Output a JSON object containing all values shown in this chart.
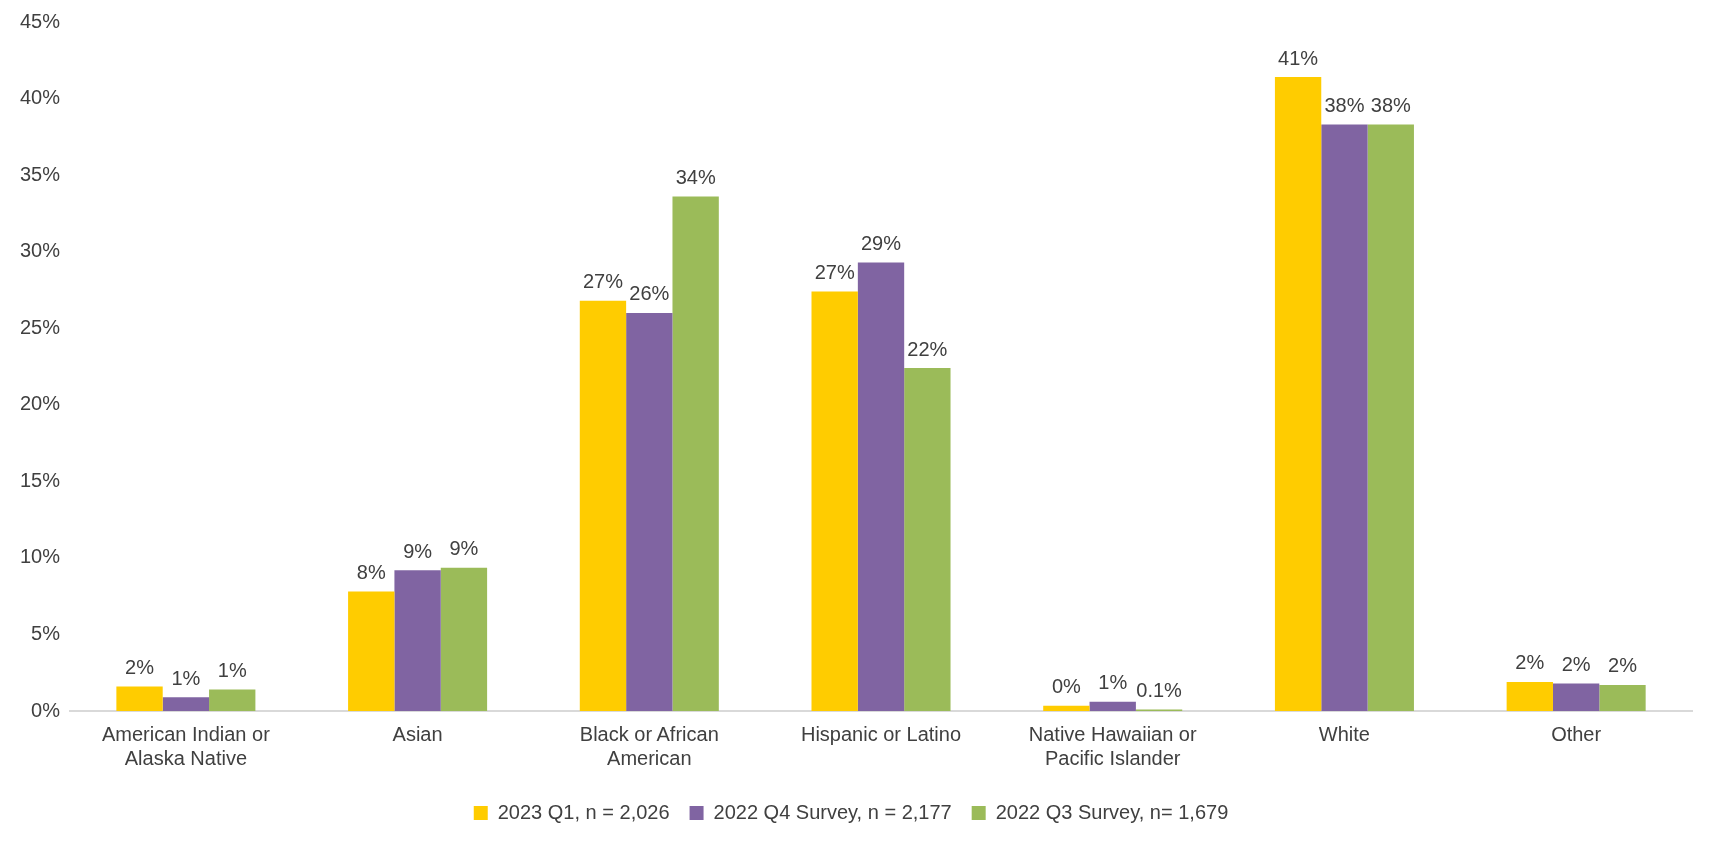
{
  "chart_data": {
    "type": "bar",
    "categories": [
      "American Indian or Alaska Native",
      "Asian",
      "Black or African American",
      "Hispanic or Latino",
      "Native Hawaiian or Pacific Islander",
      "White",
      "Other"
    ],
    "series": [
      {
        "name": "2023 Q1, n = 2,026",
        "color": "#ffcc00",
        "values": [
          1.6,
          7.8,
          26.8,
          27.4,
          0.35,
          41.4,
          1.9
        ],
        "value_labels": [
          "2%",
          "8%",
          "27%",
          "27%",
          "0%",
          "41%",
          "2%"
        ]
      },
      {
        "name": "2022 Q4 Survey, n = 2,177",
        "color": "#8064a2",
        "values": [
          0.9,
          9.2,
          26.0,
          29.3,
          0.6,
          38.3,
          1.8
        ],
        "value_labels": [
          "1%",
          "9%",
          "26%",
          "29%",
          "1%",
          "38%",
          "2%"
        ]
      },
      {
        "name": "2022 Q3 Survey, n= 1,679",
        "color": "#9bbb59",
        "values": [
          1.4,
          9.35,
          33.6,
          22.4,
          0.1,
          38.3,
          1.7
        ],
        "value_labels": [
          "1%",
          "9%",
          "34%",
          "22%",
          "0.1%",
          "38%",
          "2%"
        ]
      }
    ],
    "ylim": [
      0,
      45
    ],
    "yticks": [
      {
        "value": 0,
        "label": "0%"
      },
      {
        "value": 5,
        "label": "5%"
      },
      {
        "value": 10,
        "label": "10%"
      },
      {
        "value": 15,
        "label": "15%"
      },
      {
        "value": 20,
        "label": "20%"
      },
      {
        "value": 25,
        "label": "25%"
      },
      {
        "value": 30,
        "label": "30%"
      },
      {
        "value": 35,
        "label": "35%"
      },
      {
        "value": 40,
        "label": "40%"
      },
      {
        "value": 45,
        "label": "45%"
      }
    ],
    "grid": false,
    "legend": "bottom"
  }
}
